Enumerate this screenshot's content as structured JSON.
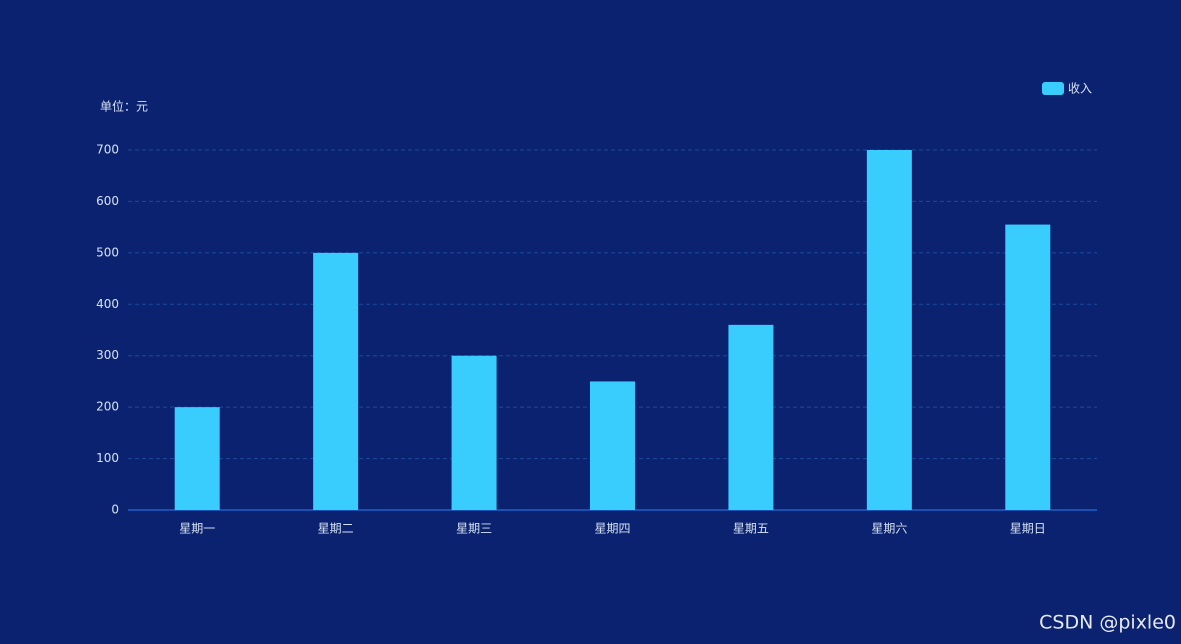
{
  "chart_data": {
    "type": "bar",
    "y_axis_label": "单位：元",
    "categories": [
      "星期一",
      "星期二",
      "星期三",
      "星期四",
      "星期五",
      "星期六",
      "星期日"
    ],
    "series": [
      {
        "name": "收入",
        "color": "#38cdfd",
        "values": [
          200,
          500,
          300,
          250,
          360,
          700,
          555
        ]
      }
    ],
    "ylim": [
      0,
      700
    ],
    "yticks": [
      0,
      100,
      200,
      300,
      400,
      500,
      600,
      700
    ],
    "grid": true,
    "legend": "top-right"
  },
  "watermark": "CSDN @pixle0"
}
